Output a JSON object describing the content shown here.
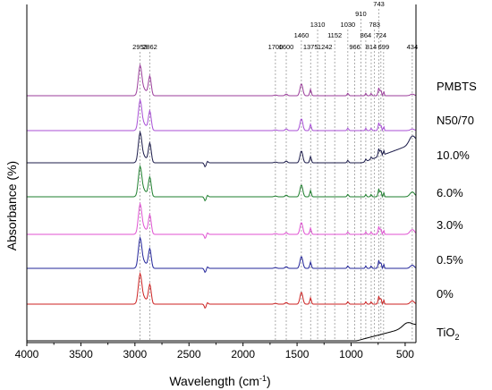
{
  "chart_data": {
    "type": "line",
    "xlabel": "Wavelength (cm",
    "xlabel_sup": "-1",
    "xlabel_end": ")",
    "ylabel": "Absorbance (%)",
    "xlim": [
      4000,
      400
    ],
    "x_ticks": [
      4000,
      3500,
      3000,
      2500,
      2000,
      1500,
      1000,
      500
    ],
    "grid": false,
    "peaks": [
      {
        "label": "2953",
        "x": 2953,
        "row": 4
      },
      {
        "label": "2862",
        "x": 2862,
        "row": 4
      },
      {
        "label": "1700",
        "x": 1700,
        "row": 4
      },
      {
        "label": "1600",
        "x": 1600,
        "row": 4
      },
      {
        "label": "1460",
        "x": 1460,
        "row": 3
      },
      {
        "label": "1375",
        "x": 1375,
        "row": 4
      },
      {
        "label": "1310",
        "x": 1310,
        "row": 2
      },
      {
        "label": "1152",
        "x": 1152,
        "row": 3
      },
      {
        "label": "1242",
        "x": 1242,
        "row": 4
      },
      {
        "label": "1030",
        "x": 1030,
        "row": 2
      },
      {
        "label": "966",
        "x": 966,
        "row": 4
      },
      {
        "label": "910",
        "x": 910,
        "row": 1
      },
      {
        "label": "864",
        "x": 864,
        "row": 3
      },
      {
        "label": "814",
        "x": 814,
        "row": 4
      },
      {
        "label": "783",
        "x": 783,
        "row": 2
      },
      {
        "label": "743",
        "x": 743,
        "row": 0
      },
      {
        "label": "724",
        "x": 724,
        "row": 3
      },
      {
        "label": "699",
        "x": 699,
        "row": 4
      },
      {
        "label": "434",
        "x": 434,
        "row": 4
      }
    ],
    "series": [
      {
        "name": "PMBTS",
        "color": "#9b3d9b",
        "label_color": "#000000"
      },
      {
        "name": "N50/70",
        "color": "#a84fd6",
        "label_color": "#000000"
      },
      {
        "name": "10.0%",
        "color": "#1b1b4a",
        "label_color": "#000000"
      },
      {
        "name": "6.0%",
        "color": "#1e7f2e",
        "label_color": "#000000"
      },
      {
        "name": "3.0%",
        "color": "#e052d2",
        "label_color": "#000000"
      },
      {
        "name": "0.5%",
        "color": "#22249a",
        "label_color": "#000000"
      },
      {
        "name": "0%",
        "color": "#cc2222",
        "label_color": "#000000"
      },
      {
        "name": "TiO",
        "name_sub": "2",
        "color": "#000000",
        "label_color": "#000000"
      }
    ]
  }
}
